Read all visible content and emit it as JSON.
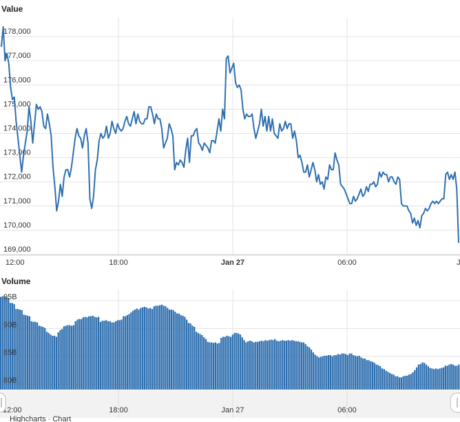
{
  "chart_data": [
    {
      "type": "line",
      "title": "Value",
      "color": "#2e6fb0",
      "x_ticks": [
        "12:00",
        "18:00",
        "Jan 27",
        "06:00",
        "J"
      ],
      "y_ticks": [
        "178,000",
        "177,000",
        "176,000",
        "175,000",
        "174,000",
        "173,000",
        "172,000",
        "171,000",
        "170,000",
        "169,000"
      ],
      "ylim": [
        169000,
        178800
      ],
      "grid": true,
      "series": [
        {
          "values": [
            177600,
            178400,
            177000,
            177300,
            176900,
            175900,
            175400,
            175500,
            174500,
            173800,
            173100,
            172400,
            173100,
            173600,
            174100,
            175100,
            174500,
            173600,
            174400,
            175200,
            175000,
            175100,
            174900,
            174300,
            174200,
            174800,
            174400,
            173900,
            172600,
            171800,
            170800,
            171200,
            171900,
            171400,
            172200,
            172500,
            172500,
            172200,
            172600,
            173200,
            173800,
            174200,
            173900,
            173800,
            173400,
            173900,
            174200,
            173600,
            171300,
            170900,
            171400,
            172500,
            172900,
            173700,
            174000,
            173800,
            173900,
            174300,
            173800,
            174000,
            174500,
            174200,
            174000,
            174400,
            174200,
            174100,
            174200,
            174500,
            174700,
            174400,
            174300,
            174600,
            174900,
            174400,
            174800,
            174500,
            174400,
            174400,
            174600,
            174600,
            175100,
            175100,
            174800,
            174400,
            174800,
            174600,
            174600,
            174200,
            173400,
            173600,
            173800,
            174400,
            174200,
            173900,
            172500,
            172800,
            172700,
            172900,
            172800,
            172600,
            173300,
            173800,
            172800,
            173900,
            173900,
            174100,
            174200,
            173600,
            173500,
            173300,
            173600,
            173500,
            173400,
            173200,
            173700,
            173700,
            173600,
            174100,
            174600,
            174100,
            175000,
            174600,
            177100,
            177200,
            176500,
            176700,
            176900,
            176100,
            175900,
            176000,
            175800,
            175000,
            174600,
            174800,
            174700,
            174700,
            174800,
            174200,
            173800,
            174100,
            174400,
            175000,
            174300,
            174700,
            174100,
            174700,
            174100,
            174600,
            174000,
            173900,
            173800,
            174400,
            174100,
            174200,
            174500,
            174200,
            174400,
            174400,
            173800,
            174100,
            173700,
            173000,
            173100,
            172800,
            172400,
            172400,
            172700,
            172200,
            172500,
            172800,
            172500,
            172000,
            172300,
            171900,
            172000,
            171700,
            172200,
            172100,
            172700,
            172500,
            172500,
            173200,
            172900,
            172700,
            171900,
            171800,
            171700,
            171500,
            171300,
            171100,
            171100,
            171400,
            171200,
            171300,
            171500,
            171700,
            171400,
            171500,
            171800,
            171600,
            171900,
            171900,
            172000,
            171800,
            171900,
            172400,
            172200,
            172400,
            172300,
            172300,
            172000,
            172200,
            172200,
            172000,
            171900,
            172200,
            172100,
            171100,
            171000,
            171000,
            171000,
            170800,
            170700,
            170300,
            170500,
            170200,
            170400,
            170100,
            170600,
            170700,
            170900,
            170800,
            170900,
            171100,
            171200,
            171100,
            171200,
            171100,
            171200,
            171300,
            171300,
            172300,
            172400,
            172100,
            172300,
            172100,
            172400,
            171700,
            169500
          ]
        }
      ]
    },
    {
      "type": "bar",
      "title": "Volume",
      "color": "#2e6fb0",
      "x_ticks": [
        "12:00",
        "18:00",
        "Jan 27",
        "06:00"
      ],
      "y_ticks": [
        "95B",
        "90B",
        "85B",
        "80B"
      ],
      "ylim": [
        79000,
        97000
      ],
      "grid": true,
      "values": [
        95700,
        95800,
        95800,
        95600,
        95500,
        94600,
        94600,
        94400,
        93500,
        93500,
        93400,
        93300,
        92500,
        92400,
        92300,
        92200,
        91300,
        91200,
        91200,
        91100,
        90500,
        90400,
        90300,
        90100,
        89400,
        89200,
        88900,
        88700,
        88700,
        88500,
        89300,
        89700,
        89900,
        90400,
        90500,
        90600,
        90600,
        90500,
        90600,
        91300,
        91600,
        91700,
        91700,
        92000,
        92100,
        92000,
        92200,
        92200,
        92300,
        92100,
        92000,
        92100,
        91200,
        91400,
        91400,
        91500,
        91300,
        91300,
        91100,
        91100,
        91300,
        91500,
        91500,
        91600,
        92200,
        92200,
        92400,
        92600,
        92900,
        93200,
        93400,
        93600,
        93400,
        93700,
        93800,
        93900,
        93800,
        93600,
        93700,
        93500,
        94000,
        94100,
        94100,
        94200,
        94300,
        94100,
        94000,
        93700,
        93400,
        93400,
        93300,
        93000,
        92700,
        92700,
        92400,
        92300,
        92100,
        91600,
        91000,
        90900,
        90500,
        90300,
        89400,
        89200,
        89000,
        88800,
        88400,
        88100,
        87600,
        87500,
        87500,
        87400,
        87500,
        87300,
        87400,
        88300,
        88500,
        88500,
        88700,
        88600,
        88500,
        88900,
        89200,
        89200,
        89100,
        88900,
        88400,
        87900,
        87500,
        87700,
        87800,
        87700,
        87500,
        87600,
        87600,
        87700,
        87800,
        87700,
        87900,
        87800,
        87900,
        88000,
        87900,
        88100,
        87800,
        87700,
        87800,
        87900,
        87800,
        87800,
        87900,
        87800,
        87900,
        87800,
        87700,
        87700,
        87600,
        87500,
        87500,
        87200,
        86800,
        86600,
        86200,
        85700,
        85300,
        85000,
        84800,
        84900,
        85000,
        85100,
        85100,
        85200,
        85200,
        85000,
        85200,
        85200,
        85400,
        85300,
        85500,
        85500,
        85400,
        85200,
        85500,
        85500,
        85200,
        85100,
        85000,
        85100,
        84800,
        84600,
        84600,
        84300,
        84300,
        84100,
        84000,
        83800,
        83500,
        83400,
        83200,
        82800,
        82700,
        82400,
        82200,
        82000,
        81800,
        81700,
        81400,
        81400,
        81200,
        81200,
        81400,
        81500,
        81500,
        81700,
        81800,
        82100,
        82500,
        83000,
        83500,
        83600,
        83900,
        83800,
        83500,
        83200,
        82900,
        82800,
        82700,
        82800,
        82700,
        82800,
        82900,
        83000,
        83300,
        83300,
        83500,
        83600,
        83500,
        83300,
        83300,
        83500
      ]
    }
  ],
  "navigator": {
    "x_ticks": [
      "12:00",
      "18:00",
      "Jan 27",
      "06:00"
    ],
    "footer_text": "Highcharts · Chart"
  }
}
